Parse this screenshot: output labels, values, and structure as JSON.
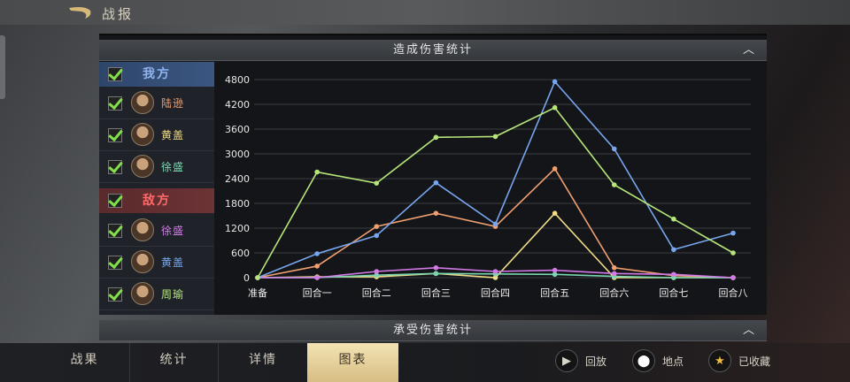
{
  "header": {
    "title": "战报"
  },
  "panel": {
    "dealt_title": "造成伤害统计",
    "taken_title": "承受伤害统计"
  },
  "legend": {
    "ally": {
      "label": "我方",
      "checked": true,
      "members": [
        {
          "name": "陆逊",
          "color": "#f0a070",
          "checked": true
        },
        {
          "name": "黄盖",
          "color": "#f2dc88",
          "checked": true
        },
        {
          "name": "徐盛",
          "color": "#7ad6b0",
          "checked": true
        }
      ]
    },
    "enemy": {
      "label": "敌方",
      "checked": true,
      "members": [
        {
          "name": "徐盛",
          "color": "#d27ae8",
          "checked": true
        },
        {
          "name": "黄盖",
          "color": "#78a6ee",
          "checked": true
        },
        {
          "name": "周瑜",
          "color": "#b6e67a",
          "checked": true
        }
      ]
    }
  },
  "chart_data": {
    "type": "line",
    "categories": [
      "准备",
      "回合一",
      "回合二",
      "回合三",
      "回合四",
      "回合五",
      "回合六",
      "回合七",
      "回合八"
    ],
    "ylim": [
      0,
      4800
    ],
    "yticks": [
      "0",
      "600",
      "1200",
      "1800",
      "2400",
      "3000",
      "3600",
      "4200",
      "4800"
    ],
    "grid": true,
    "series": [
      {
        "name": "陆逊",
        "color": "#f0a070",
        "values": [
          0,
          280,
          1240,
          1560,
          1240,
          2640,
          240,
          50,
          0
        ]
      },
      {
        "name": "黄盖",
        "color": "#f2dc88",
        "values": [
          0,
          20,
          20,
          100,
          0,
          1560,
          0,
          0,
          0
        ]
      },
      {
        "name": "徐盛",
        "color": "#7ad6b0",
        "values": [
          0,
          0,
          60,
          100,
          90,
          80,
          30,
          0,
          0
        ]
      },
      {
        "name": "徐盛",
        "color": "#d27ae8",
        "values": [
          0,
          0,
          150,
          240,
          150,
          180,
          100,
          80,
          0
        ]
      },
      {
        "name": "黄盖",
        "color": "#78a6ee",
        "values": [
          0,
          580,
          1020,
          2300,
          1300,
          4750,
          3120,
          680,
          1080
        ]
      },
      {
        "name": "周瑜",
        "color": "#b6e67a",
        "values": [
          0,
          2560,
          2290,
          3400,
          3420,
          4120,
          2250,
          1420,
          600
        ]
      }
    ]
  },
  "tabs": [
    {
      "label": "战果"
    },
    {
      "label": "统计"
    },
    {
      "label": "详情"
    },
    {
      "label": "图表",
      "active": true
    }
  ],
  "actions": [
    {
      "label": "回放",
      "icon": "play-icon"
    },
    {
      "label": "地点",
      "icon": "location-pin-icon"
    },
    {
      "label": "已收藏",
      "icon": "star-icon"
    }
  ]
}
